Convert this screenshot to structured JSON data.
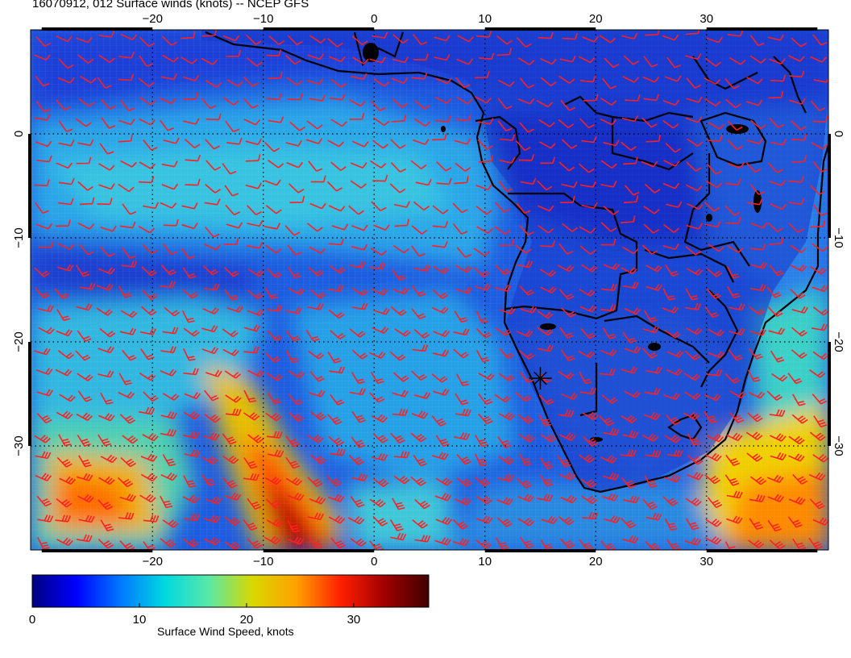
{
  "title": "16070912, 012 Surface winds (knots) -- NCEP GFS",
  "map": {
    "lon_range": [
      -31,
      41
    ],
    "lat_range": [
      -40,
      10
    ],
    "lon_ticks": [
      -20,
      -10,
      0,
      10,
      20,
      30
    ],
    "lat_ticks": [
      0,
      -10,
      -20,
      -30
    ],
    "gridlines": "dotted",
    "coastline_color": "#000000",
    "barb_color": "#ff2020",
    "marker": {
      "type": "star-marker",
      "lon": 15,
      "lat": -23.5
    }
  },
  "colorbar": {
    "label": "Surface Wind Speed, knots",
    "ticks": [
      "0",
      "10",
      "20",
      "30"
    ],
    "range": [
      0,
      37
    ],
    "colors": [
      "#00007f",
      "#0000ff",
      "#0078ff",
      "#00d8e0",
      "#58e8a8",
      "#d8d800",
      "#ffa000",
      "#ff2000",
      "#a00000",
      "#400000"
    ]
  }
}
